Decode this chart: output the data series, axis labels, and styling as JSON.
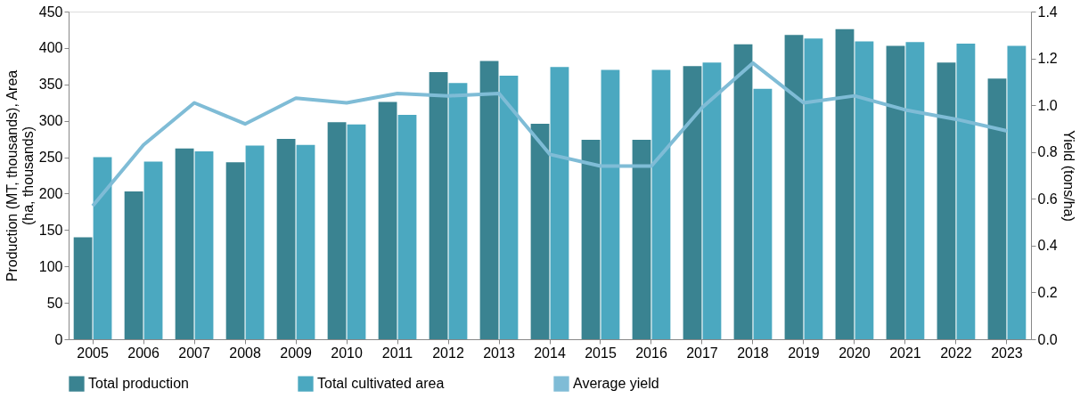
{
  "chart_data": {
    "type": "bar",
    "ylabel": "Production (MT, thousands), Area\n(ha, thousands)",
    "y2label": "Yield (tons/ha)",
    "categories": [
      "2005",
      "2006",
      "2007",
      "2008",
      "2009",
      "2010",
      "2011",
      "2012",
      "2013",
      "2014",
      "2015",
      "2016",
      "2017",
      "2018",
      "2019",
      "2020",
      "2021",
      "2022",
      "2023"
    ],
    "series": [
      {
        "name": "Total production",
        "color": "#3a8391",
        "values": [
          140,
          203,
          262,
          243,
          275,
          298,
          326,
          367,
          382,
          296,
          274,
          274,
          375,
          405,
          418,
          426,
          403,
          380,
          358
        ]
      },
      {
        "name": "Total cultivated area",
        "color": "#4ba8c0",
        "values": [
          250,
          244,
          258,
          266,
          267,
          295,
          308,
          352,
          362,
          374,
          370,
          370,
          380,
          344,
          413,
          409,
          408,
          406,
          403
        ]
      },
      {
        "name": "Average yield",
        "color": "#7fbcd6",
        "type": "line",
        "axis": "y2",
        "values": [
          0.57,
          0.83,
          1.01,
          0.92,
          1.03,
          1.01,
          1.05,
          1.04,
          1.05,
          0.79,
          0.74,
          0.74,
          0.99,
          1.18,
          1.01,
          1.04,
          0.98,
          0.94,
          0.89
        ]
      }
    ],
    "ylim": [
      0,
      450
    ],
    "yticks": [
      0,
      50,
      100,
      150,
      200,
      250,
      300,
      350,
      400,
      450
    ],
    "y2lim": [
      0,
      1.4
    ],
    "y2ticks": [
      {
        "value": 0,
        "label": "0.0"
      },
      0.2,
      0.4,
      0.6,
      0.8,
      {
        "value": 1,
        "label": "1.0"
      },
      1.2,
      1.4
    ],
    "grid": false,
    "legend": "bottom",
    "marker": "none",
    "line_style": "solid"
  }
}
